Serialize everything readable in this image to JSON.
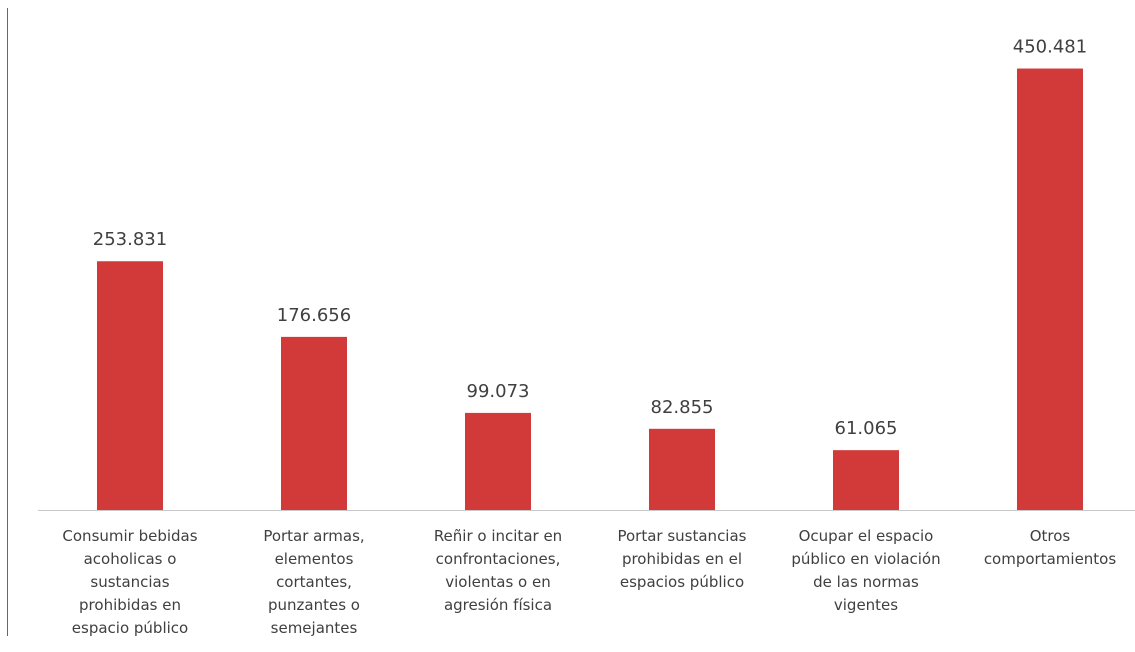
{
  "chart_data": {
    "type": "bar",
    "title": "",
    "xlabel": "",
    "ylabel": "",
    "ylim": [
      0,
      500000
    ],
    "grid": false,
    "legend": "none",
    "bar_color": "#d23a3a",
    "axis_color": "#c8c8c8",
    "label_color": "#404040",
    "categories": [
      [
        "Consumir bebidas",
        "acoholicas o",
        "sustancias",
        "prohibidas en",
        "espacio público"
      ],
      [
        "Portar armas,",
        "elementos",
        "cortantes,",
        "punzantes o",
        "semejantes"
      ],
      [
        "Reñir o incitar en",
        "confrontaciones,",
        "violentas o en",
        "agresión física"
      ],
      [
        "Portar sustancias",
        "prohibidas en el",
        "espacios público"
      ],
      [
        "Ocupar el espacio",
        "público en violación",
        "de las normas",
        "vigentes"
      ],
      [
        "Otros",
        "comportamientos"
      ]
    ],
    "values": [
      253831,
      176656,
      99073,
      82855,
      61065,
      450481
    ],
    "value_labels": [
      "253.831",
      "176.656",
      "99.073",
      "82.855",
      "61.065",
      "450.481"
    ]
  }
}
